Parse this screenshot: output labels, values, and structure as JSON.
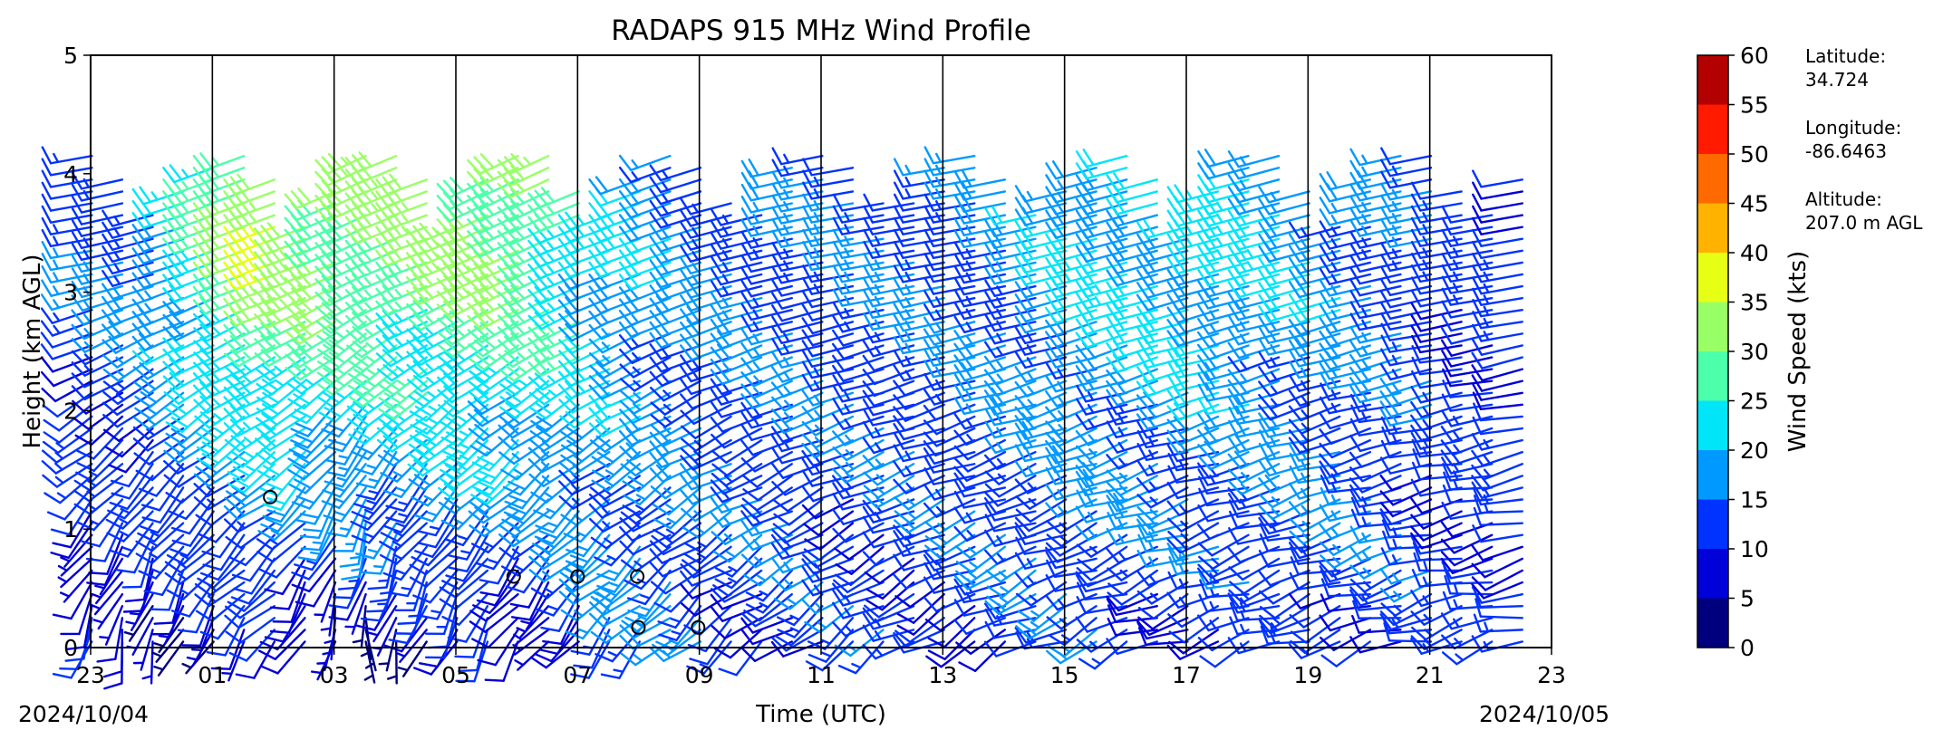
{
  "chart_data": {
    "type": "wind_barb_profile",
    "title": "RADAPS 915 MHz Wind Profile",
    "xlabel": "Time (UTC)",
    "ylabel": "Height (km AGL)",
    "x_tick_labels": [
      "23",
      "01",
      "03",
      "05",
      "07",
      "09",
      "11",
      "13",
      "15",
      "17",
      "19",
      "21",
      "23"
    ],
    "x_range_hours_utc": [
      23,
      47
    ],
    "start_date": "2024/10/04",
    "end_date": "2024/10/05",
    "y_tick_labels": [
      "0",
      "1",
      "2",
      "3",
      "4",
      "5"
    ],
    "ylim_km": [
      0,
      5
    ],
    "grid": "vertical lines every 2 hours",
    "colorbar": {
      "label": "Wind Speed (kts)",
      "tick_labels": [
        "0",
        "5",
        "10",
        "15",
        "20",
        "25",
        "30",
        "35",
        "40",
        "45",
        "50",
        "55",
        "60"
      ],
      "bins_kts": [
        0,
        5,
        10,
        15,
        20,
        25,
        30,
        35,
        40,
        45,
        50,
        55,
        60
      ],
      "colors": [
        "#00007f",
        "#0000d9",
        "#0033ff",
        "#0099ff",
        "#00e5f8",
        "#4cffaa",
        "#99ff66",
        "#e6ff14",
        "#ffb300",
        "#ff6a00",
        "#ff1a00",
        "#b30000"
      ]
    },
    "station": {
      "latitude_label": "Latitude:",
      "latitude": "34.724",
      "longitude_label": "Longitude:",
      "longitude": "-86.6463",
      "altitude_label": "Altitude:",
      "altitude": "207.0 m AGL"
    },
    "profiles_note_blocks": [
      {
        "time_utc": 23.0,
        "low_level": {
          "dir_deg": 200,
          "speed_kts": 8
        },
        "upper": {
          "dir_deg": 260,
          "speed_kts": 14
        }
      },
      {
        "time_utc": 24.0,
        "low_level": {
          "dir_deg": 190,
          "speed_kts": 7
        },
        "upper": {
          "dir_deg": 255,
          "speed_kts": 16
        }
      },
      {
        "time_utc": 25.0,
        "low_level": {
          "dir_deg": 210,
          "speed_kts": 6
        },
        "upper": {
          "dir_deg": 250,
          "speed_kts": 24
        }
      },
      {
        "time_utc": 26.0,
        "low_level": {
          "dir_deg": 220,
          "speed_kts": 6
        },
        "upper": {
          "dir_deg": 250,
          "speed_kts": 34
        }
      },
      {
        "time_utc": 27.5,
        "low_level": {
          "dir_deg": 180,
          "speed_kts": 5
        },
        "upper": {
          "dir_deg": 245,
          "speed_kts": 30
        }
      },
      {
        "time_utc": 28.5,
        "low_level": {
          "dir_deg": 200,
          "speed_kts": 6
        },
        "upper": {
          "dir_deg": 250,
          "speed_kts": 30
        }
      },
      {
        "time_utc": 29.5,
        "low_level": {
          "dir_deg": 210,
          "speed_kts": 7
        },
        "upper": {
          "dir_deg": 245,
          "speed_kts": 32
        }
      },
      {
        "time_utc": 30.5,
        "low_level": {
          "dir_deg": 215,
          "speed_kts": 6
        },
        "upper": {
          "dir_deg": 245,
          "speed_kts": 30
        }
      },
      {
        "time_utc": 31.5,
        "low_level": {
          "dir_deg": 220,
          "speed_kts": 14
        },
        "upper": {
          "dir_deg": 250,
          "speed_kts": 22
        }
      },
      {
        "time_utc": 32.5,
        "low_level": {
          "dir_deg": 225,
          "speed_kts": 14
        },
        "upper": {
          "dir_deg": 250,
          "speed_kts": 18
        }
      },
      {
        "time_utc": 33.5,
        "low_level": {
          "dir_deg": 230,
          "speed_kts": 12
        },
        "upper": {
          "dir_deg": 255,
          "speed_kts": 16
        }
      },
      {
        "time_utc": 35.5,
        "low_level": {
          "dir_deg": 235,
          "speed_kts": 12
        },
        "upper": {
          "dir_deg": 260,
          "speed_kts": 14
        }
      },
      {
        "time_utc": 37.5,
        "low_level": {
          "dir_deg": 240,
          "speed_kts": 12
        },
        "upper": {
          "dir_deg": 260,
          "speed_kts": 14
        }
      },
      {
        "time_utc": 39.5,
        "low_level": {
          "dir_deg": 245,
          "speed_kts": 12
        },
        "upper": {
          "dir_deg": 255,
          "speed_kts": 20
        }
      },
      {
        "time_utc": 41.5,
        "low_level": {
          "dir_deg": 250,
          "speed_kts": 10
        },
        "upper": {
          "dir_deg": 255,
          "speed_kts": 22
        }
      },
      {
        "time_utc": 43.5,
        "low_level": {
          "dir_deg": 250,
          "speed_kts": 12
        },
        "upper": {
          "dir_deg": 255,
          "speed_kts": 18
        }
      },
      {
        "time_utc": 45.5,
        "low_level": {
          "dir_deg": 255,
          "speed_kts": 12
        },
        "upper": {
          "dir_deg": 260,
          "speed_kts": 12
        }
      }
    ]
  }
}
